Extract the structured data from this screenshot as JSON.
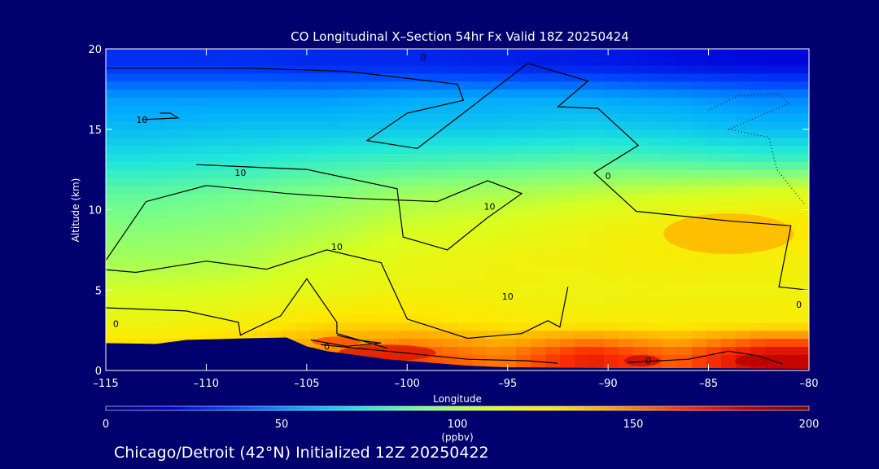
{
  "chart_data": {
    "type": "heatmap",
    "title": "CO Longitudinal X–Section 54hr  Fx Valid 18Z 20250424",
    "xlabel": "Longitude",
    "ylabel": "Altitude (km)",
    "xlim": [
      -115,
      -80
    ],
    "ylim": [
      0,
      20
    ],
    "x_ticks": [
      -115,
      -110,
      -105,
      -100,
      -95,
      -90,
      -85,
      -80
    ],
    "x_tick_labels": [
      "–115",
      "–110",
      "–105",
      "–100",
      "–95",
      "–90",
      "–85",
      "–80"
    ],
    "y_ticks": [
      0,
      5,
      10,
      15,
      20
    ],
    "y_tick_labels": [
      "0",
      "5",
      "10",
      "15",
      "20"
    ],
    "colorbar": {
      "min": 0,
      "max": 200,
      "ticks": [
        0,
        50,
        100,
        150,
        200
      ],
      "tick_labels": [
        "0",
        "50",
        "100",
        "150",
        "200"
      ],
      "units_label": "(ppbv)",
      "colors": [
        "#00006e",
        "#0000d8",
        "#0048ff",
        "#00a8ff",
        "#20e8d8",
        "#80ff80",
        "#d8ff20",
        "#ffe800",
        "#ff9800",
        "#ff3000",
        "#c00000",
        "#800000"
      ]
    },
    "terrain": [
      {
        "x": -115,
        "y": 1.7
      },
      {
        "x": -112.5,
        "y": 1.65
      },
      {
        "x": -111,
        "y": 1.9
      },
      {
        "x": -108,
        "y": 2.0
      },
      {
        "x": -106,
        "y": 2.05
      },
      {
        "x": -105,
        "y": 1.5
      },
      {
        "x": -104,
        "y": 1.2
      },
      {
        "x": -101,
        "y": 0.7
      },
      {
        "x": -97,
        "y": 0.3
      },
      {
        "x": -95,
        "y": 0.2
      },
      {
        "x": -90,
        "y": 0.15
      },
      {
        "x": -85,
        "y": 0.15
      },
      {
        "x": -80,
        "y": 0.1
      }
    ],
    "co_field_rows": [
      {
        "altitude": 19.0,
        "values": [
          30,
          30,
          28,
          28,
          26,
          25,
          22,
          20
        ]
      },
      {
        "altitude": 17.0,
        "values": [
          52,
          52,
          52,
          55,
          55,
          55,
          52,
          48
        ]
      },
      {
        "altitude": 15.0,
        "values": [
          60,
          62,
          62,
          64,
          64,
          66,
          64,
          60
        ]
      },
      {
        "altitude": 13.0,
        "values": [
          72,
          74,
          78,
          80,
          82,
          84,
          82,
          80
        ]
      },
      {
        "altitude": 11.0,
        "values": [
          85,
          88,
          92,
          98,
          100,
          104,
          108,
          112
        ]
      },
      {
        "altitude": 9.0,
        "values": [
          92,
          94,
          100,
          108,
          112,
          118,
          124,
          128
        ]
      },
      {
        "altitude": 7.0,
        "values": [
          98,
          100,
          108,
          116,
          120,
          122,
          124,
          122
        ]
      },
      {
        "altitude": 5.0,
        "values": [
          108,
          110,
          116,
          120,
          120,
          118,
          120,
          120
        ]
      },
      {
        "altitude": 3.0,
        "values": [
          118,
          122,
          130,
          130,
          126,
          124,
          124,
          124
        ]
      },
      {
        "altitude": 1.0,
        "values": [
          135,
          140,
          150,
          160,
          150,
          170,
          155,
          180
        ]
      }
    ],
    "contour_labels": [
      {
        "x": -113.2,
        "y": 15.6,
        "text": "10"
      },
      {
        "x": -108.3,
        "y": 12.3,
        "text": "10"
      },
      {
        "x": -103.5,
        "y": 7.7,
        "text": "10"
      },
      {
        "x": -95.9,
        "y": 10.2,
        "text": "10"
      },
      {
        "x": -95.0,
        "y": 4.6,
        "text": "10"
      },
      {
        "x": -99.2,
        "y": 19.5,
        "text": "0"
      },
      {
        "x": -90.0,
        "y": 12.1,
        "text": "0"
      },
      {
        "x": -114.5,
        "y": 2.9,
        "text": "0"
      },
      {
        "x": -104.0,
        "y": 1.5,
        "text": "0"
      },
      {
        "x": -88.0,
        "y": 0.6,
        "text": "0"
      },
      {
        "x": -80.5,
        "y": 4.1,
        "text": "0"
      }
    ]
  },
  "footer": {
    "text": "Chicago/Detroit (42°N) Initialized 12Z 20250422"
  }
}
